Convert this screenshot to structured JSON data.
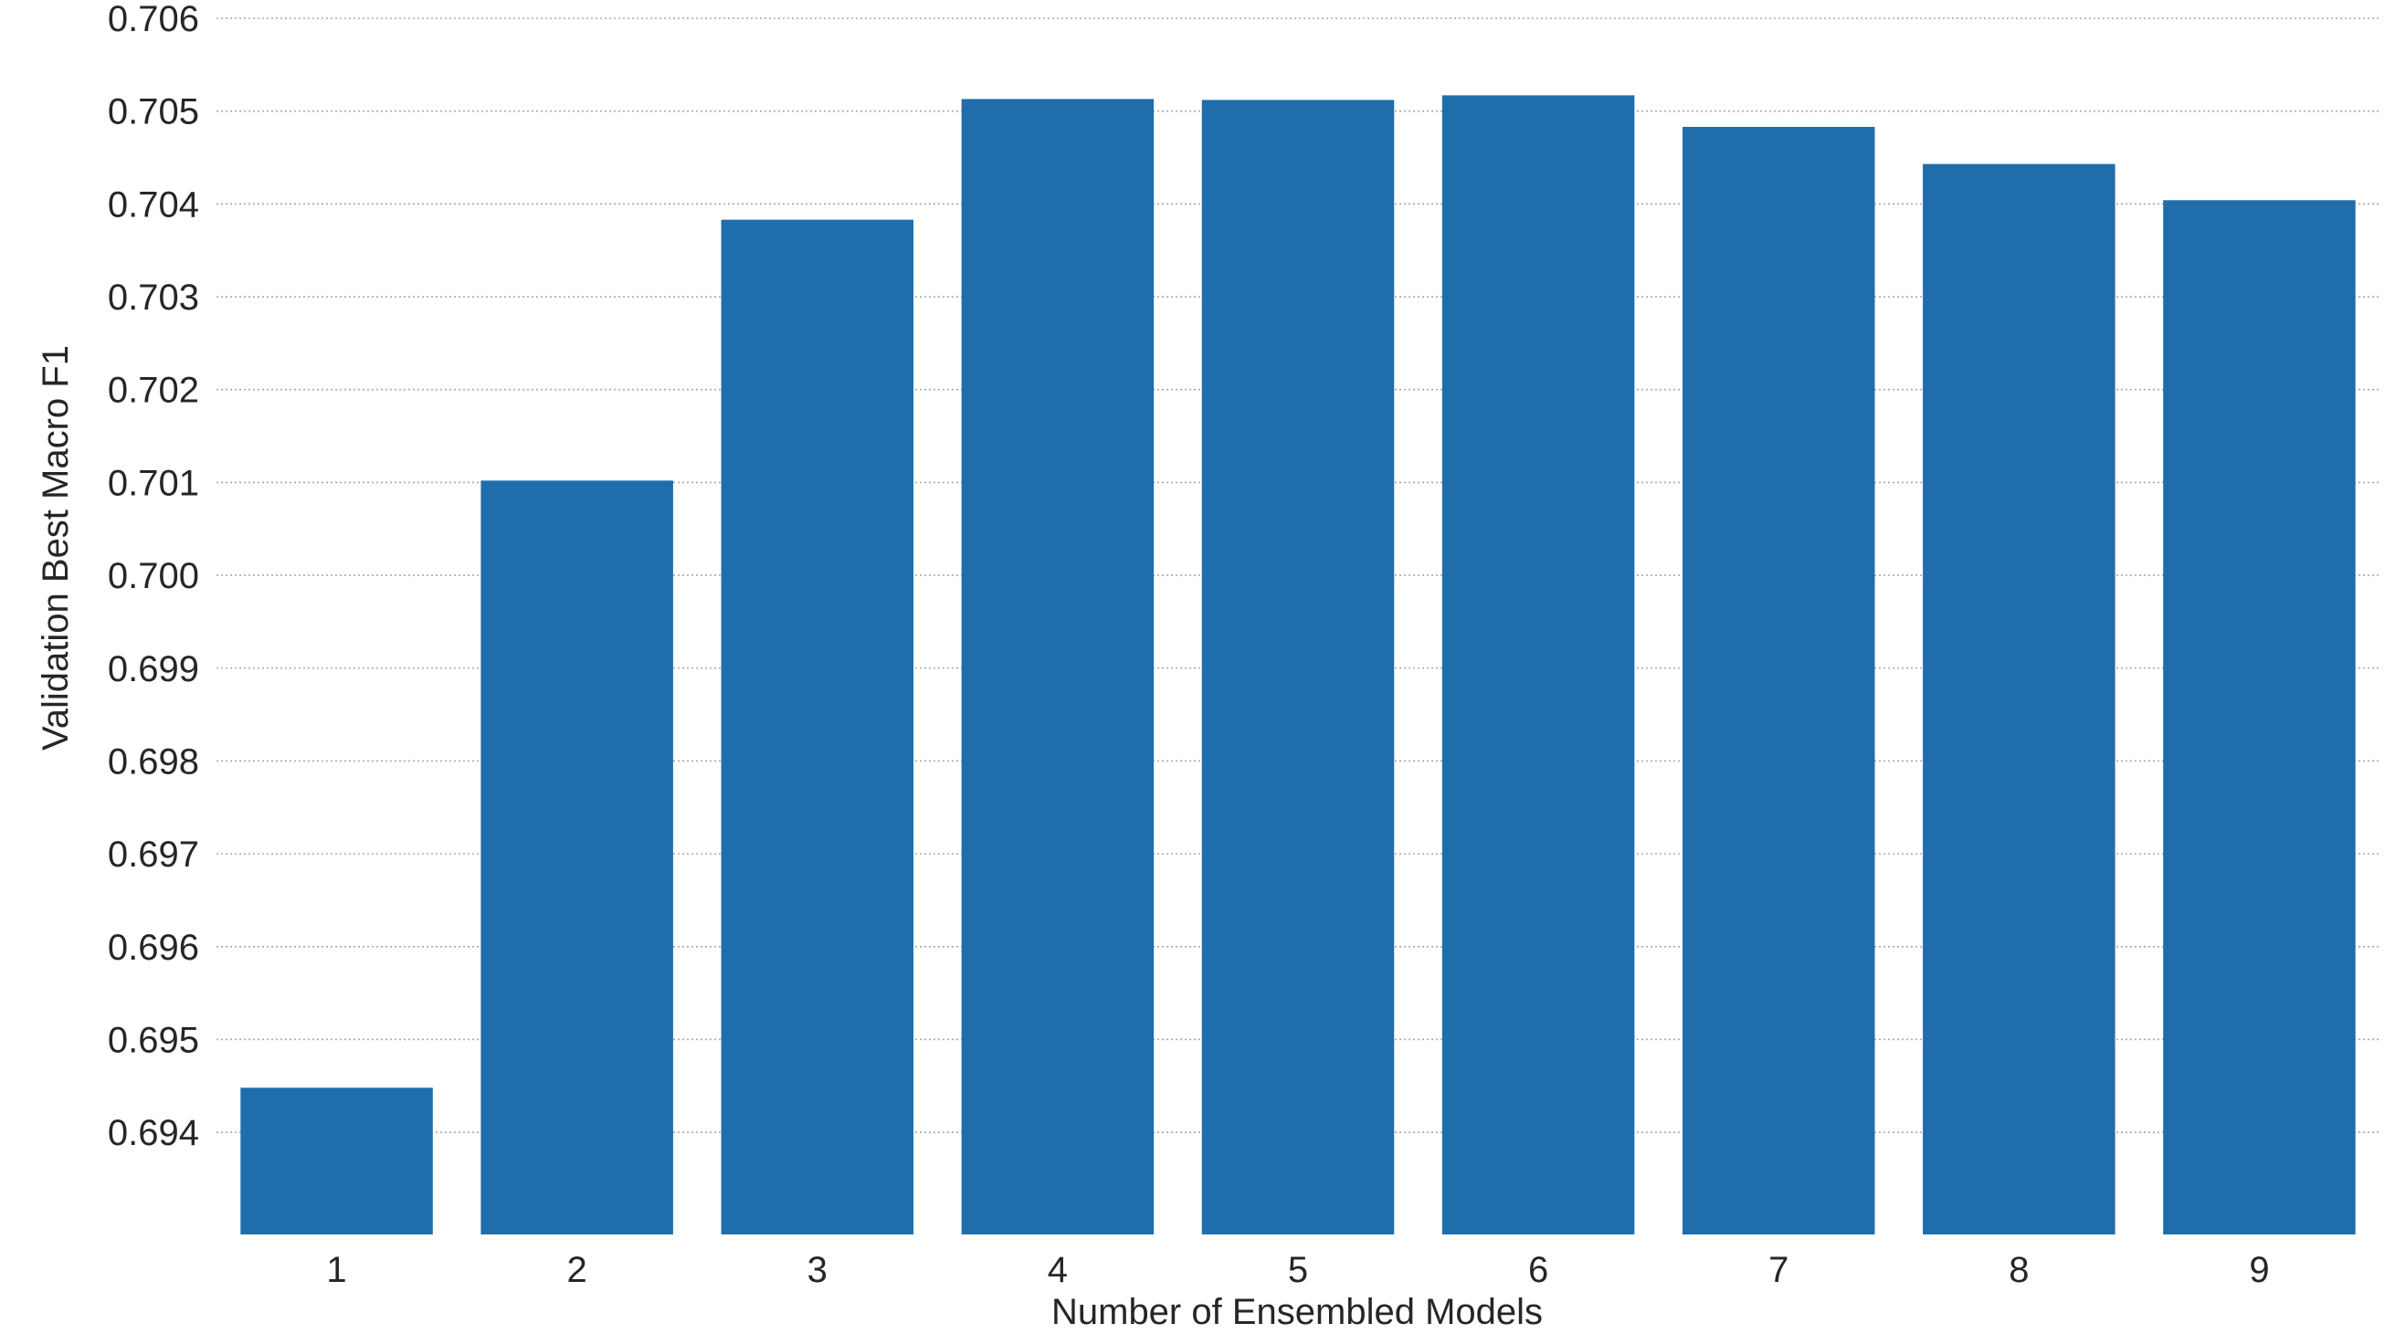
{
  "chart_data": {
    "type": "bar",
    "title": "",
    "xlabel": "Number of Ensembled Models",
    "ylabel": "Validation Best Macro F1",
    "categories": [
      "1",
      "2",
      "3",
      "4",
      "5",
      "6",
      "7",
      "8",
      "9"
    ],
    "values": [
      0.69448,
      0.70102,
      0.70383,
      0.70513,
      0.70512,
      0.70517,
      0.70483,
      0.70443,
      0.70404
    ],
    "ylim": [
      0.6929,
      0.706
    ],
    "yticks": [
      0.706,
      0.705,
      0.704,
      0.703,
      0.702,
      0.701,
      0.7,
      0.699,
      0.698,
      0.697,
      0.696,
      0.695,
      0.694
    ],
    "ytick_labels": [
      "0.706",
      "0.705",
      "0.704",
      "0.703",
      "0.702",
      "0.701",
      "0.700",
      "0.699",
      "0.698",
      "0.697",
      "0.696",
      "0.695",
      "0.694"
    ],
    "grid": "horizontal-dotted",
    "bar_color": "#1f6dab"
  }
}
